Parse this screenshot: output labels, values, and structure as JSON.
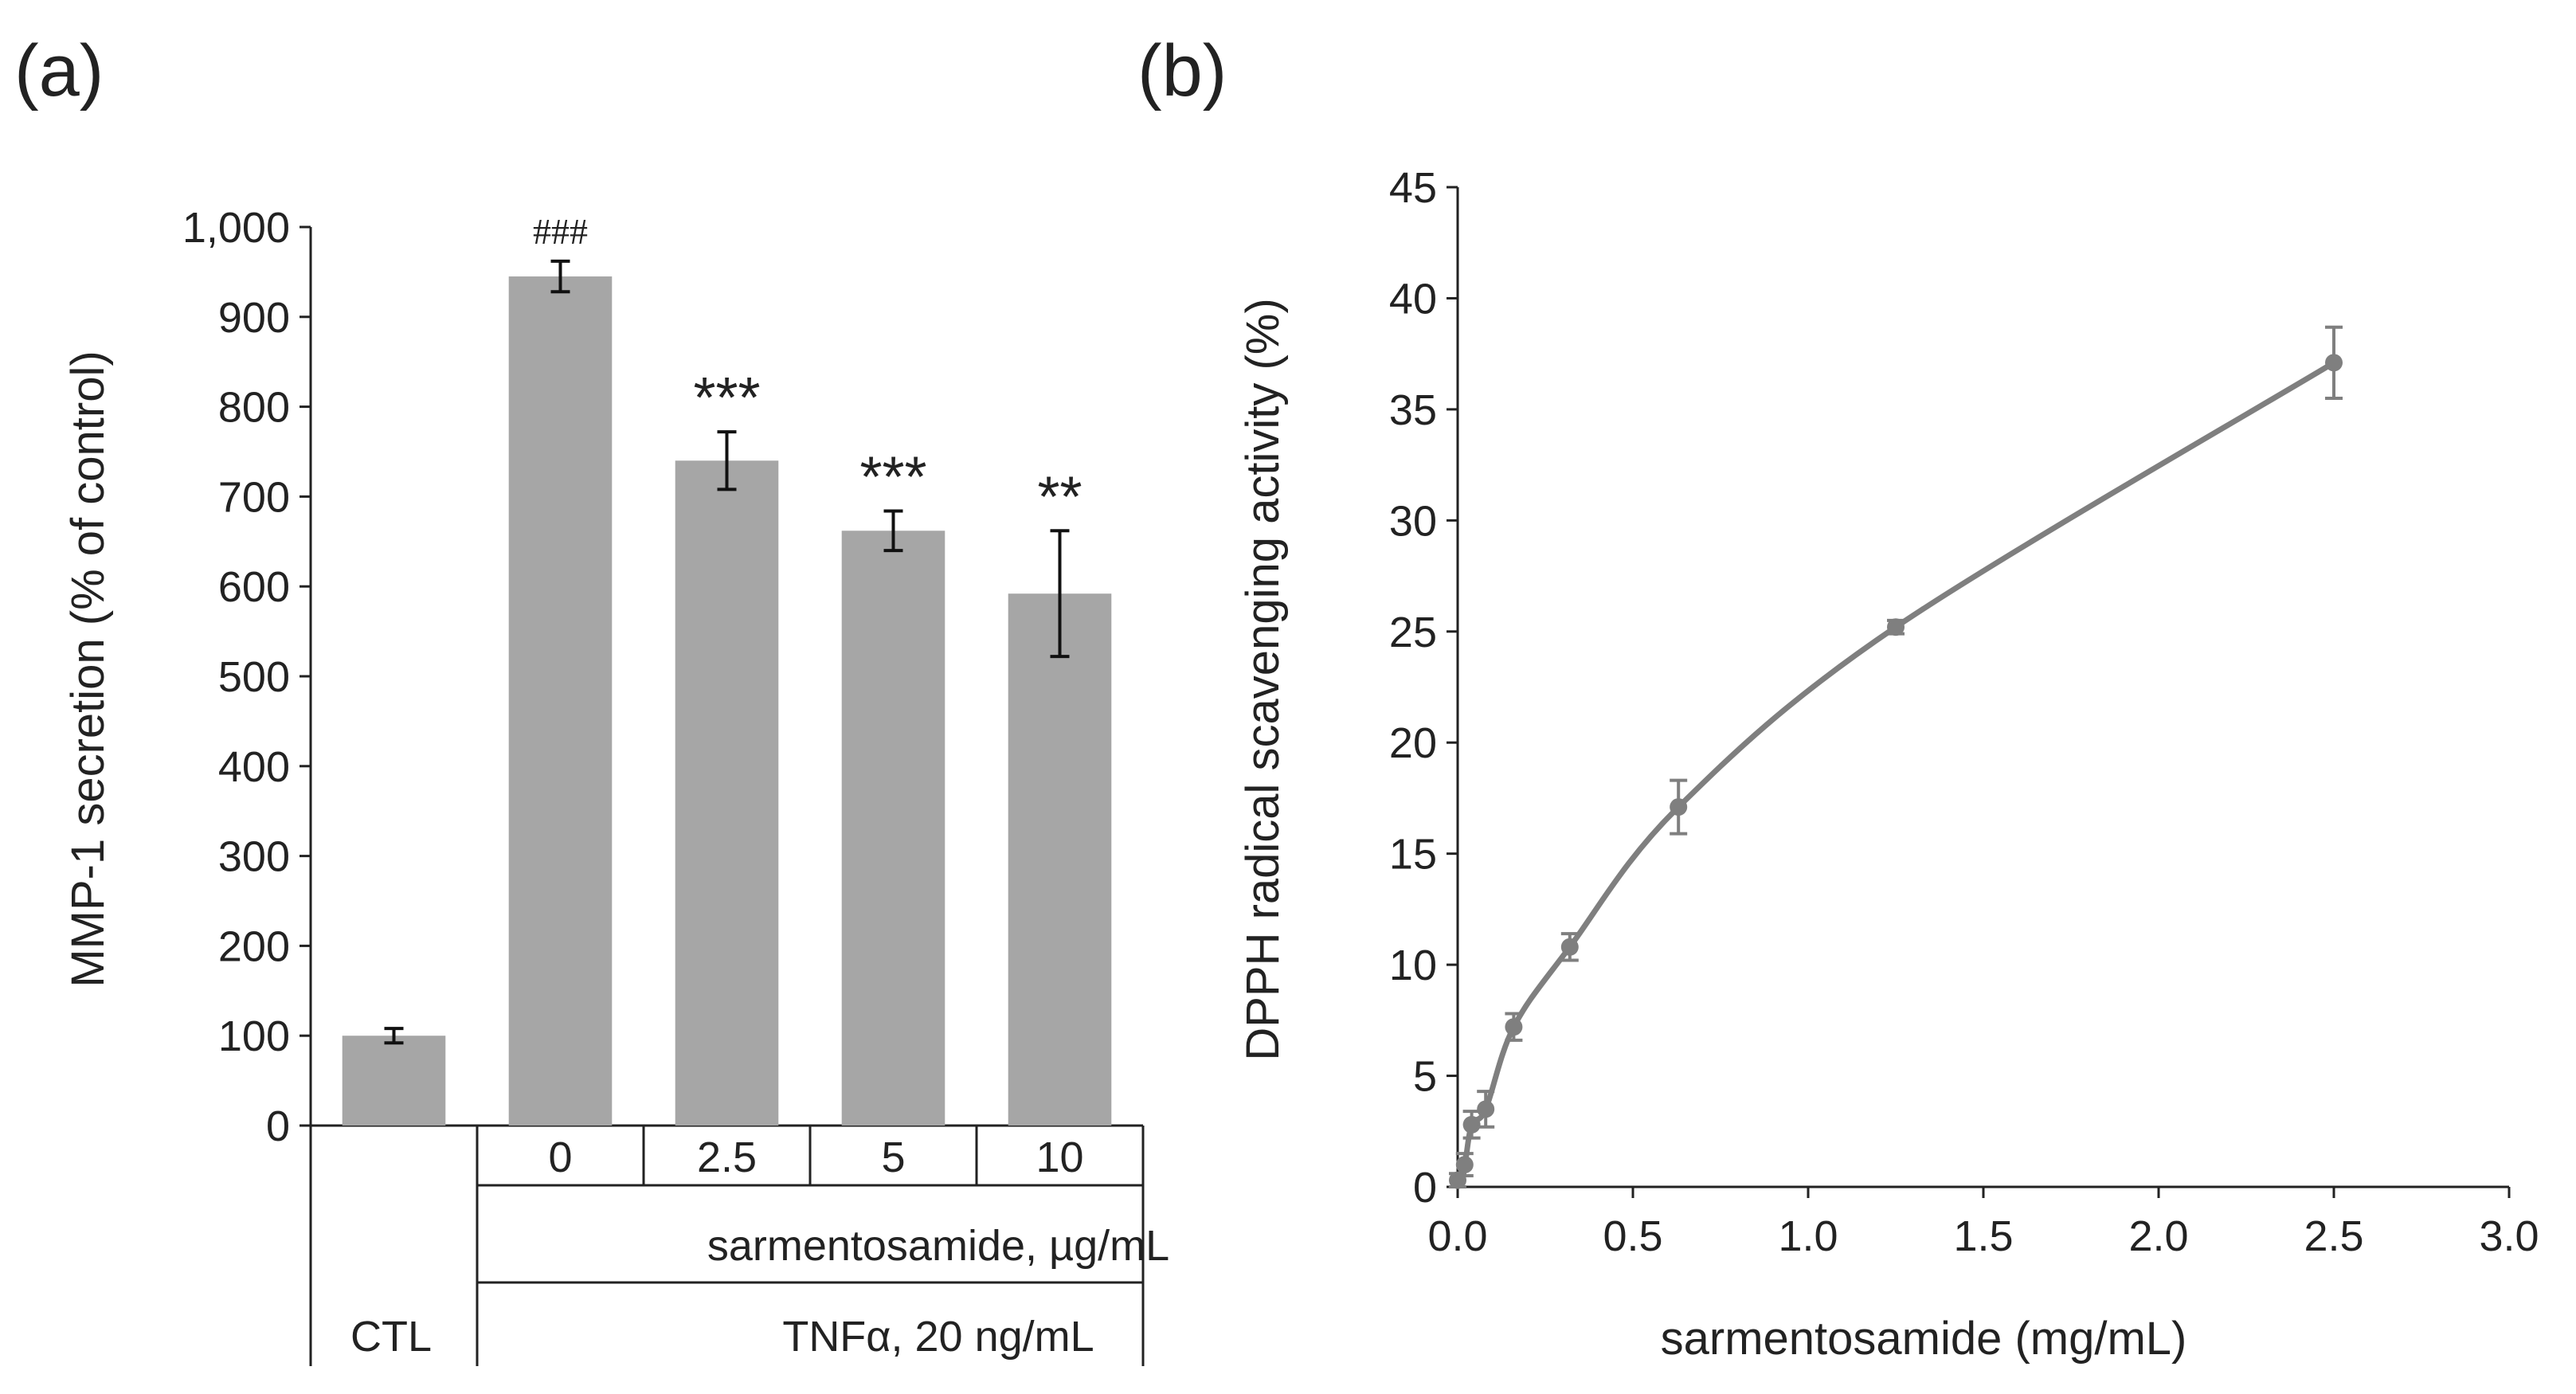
{
  "chart_data": [
    {
      "panel_label": "(a)",
      "type": "bar",
      "ylabel": "MMP-1 secretion (% of control)",
      "ylim": [
        0,
        1000
      ],
      "yticks": [
        0,
        100,
        200,
        300,
        400,
        500,
        600,
        700,
        800,
        900,
        1000
      ],
      "ytick_labels": [
        "0",
        "100",
        "200",
        "300",
        "400",
        "500",
        "600",
        "700",
        "800",
        "900",
        "1,000"
      ],
      "categories": [
        "CTL",
        "0",
        "2.5",
        "5",
        "10"
      ],
      "values": [
        100,
        945,
        740,
        662,
        592
      ],
      "errors": [
        8,
        17,
        32,
        22,
        70
      ],
      "significance": [
        "",
        "###",
        "***",
        "***",
        "**"
      ],
      "bar_color": "#a6a6a6",
      "group_labels": {
        "treatment": "sarmentosamide, µg/mL",
        "control": "CTL",
        "stimulus": "TNFα, 20 ng/mL"
      },
      "grid": false
    },
    {
      "panel_label": "(b)",
      "type": "line",
      "xlabel": "sarmentosamide (mg/mL)",
      "ylabel": "DPPH radical scavenging activity (%)",
      "xlim": [
        0,
        3
      ],
      "ylim": [
        0,
        45
      ],
      "xticks": [
        0,
        0.5,
        1,
        1.5,
        2,
        2.5,
        3
      ],
      "xtick_labels": [
        "0.0",
        "0.5",
        "1.0",
        "1.5",
        "2.0",
        "2.5",
        "3.0"
      ],
      "yticks": [
        0,
        5,
        10,
        15,
        20,
        25,
        30,
        35,
        40,
        45
      ],
      "ytick_labels": [
        "0",
        "5",
        "10",
        "15",
        "20",
        "25",
        "30",
        "35",
        "40",
        "45"
      ],
      "x": [
        0.0,
        0.02,
        0.04,
        0.08,
        0.16,
        0.32,
        0.63,
        1.25,
        2.5
      ],
      "y": [
        0.3,
        1.0,
        2.8,
        3.5,
        7.2,
        10.8,
        17.1,
        25.2,
        37.1
      ],
      "errors": [
        0.3,
        0.5,
        0.6,
        0.8,
        0.6,
        0.6,
        1.2,
        0.3,
        1.6
      ],
      "line_color": "#7f7f7f",
      "grid": false
    }
  ]
}
